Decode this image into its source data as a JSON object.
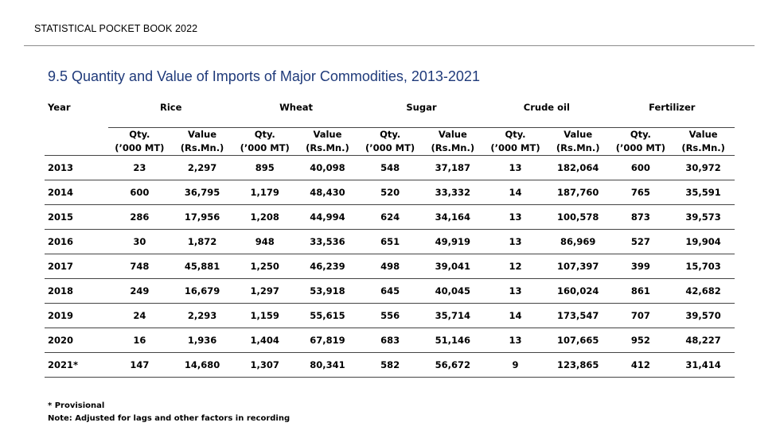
{
  "header": {
    "title": "STATISTICAL POCKET BOOK 2022"
  },
  "table_title": "9.5 Quantity and Value of Imports of Major Commodities, 2013-2021",
  "table": {
    "year_header": "Year",
    "groups": [
      "Rice",
      "Wheat",
      "Sugar",
      "Crude oil",
      "Fertilizer"
    ],
    "sub_headers": {
      "qty_line1": "Qty.",
      "qty_line2": "(’000 MT)",
      "value_line1": "Value",
      "value_line2": "(Rs.Mn.)"
    },
    "rows": [
      {
        "year": "2013",
        "cells": [
          "23",
          "2,297",
          "895",
          "40,098",
          "548",
          "37,187",
          "13",
          "182,064",
          "600",
          "30,972"
        ]
      },
      {
        "year": "2014",
        "cells": [
          "600",
          "36,795",
          "1,179",
          "48,430",
          "520",
          "33,332",
          "14",
          "187,760",
          "765",
          "35,591"
        ]
      },
      {
        "year": "2015",
        "cells": [
          "286",
          "17,956",
          "1,208",
          "44,994",
          "624",
          "34,164",
          "13",
          "100,578",
          "873",
          "39,573"
        ]
      },
      {
        "year": "2016",
        "cells": [
          "30",
          "1,872",
          "948",
          "33,536",
          "651",
          "49,919",
          "13",
          "86,969",
          "527",
          "19,904"
        ]
      },
      {
        "year": "2017",
        "cells": [
          "748",
          "45,881",
          "1,250",
          "46,239",
          "498",
          "39,041",
          "12",
          "107,397",
          "399",
          "15,703"
        ]
      },
      {
        "year": "2018",
        "cells": [
          "249",
          "16,679",
          "1,297",
          "53,918",
          "645",
          "40,045",
          "13",
          "160,024",
          "861",
          "42,682"
        ]
      },
      {
        "year": "2019",
        "cells": [
          "24",
          "2,293",
          "1,159",
          "55,615",
          "556",
          "35,714",
          "14",
          "173,547",
          "707",
          "39,570"
        ]
      },
      {
        "year": "2020",
        "cells": [
          "16",
          "1,936",
          "1,404",
          "67,819",
          "683",
          "51,146",
          "13",
          "107,665",
          "952",
          "48,227"
        ]
      },
      {
        "year": "2021*",
        "cells": [
          "147",
          "14,680",
          "1,307",
          "80,341",
          "582",
          "56,672",
          "9",
          "123,865",
          "412",
          "31,414"
        ]
      }
    ]
  },
  "notes": {
    "provisional": "* Provisional",
    "note": "Note:  Adjusted for lags and other factors in recording"
  }
}
